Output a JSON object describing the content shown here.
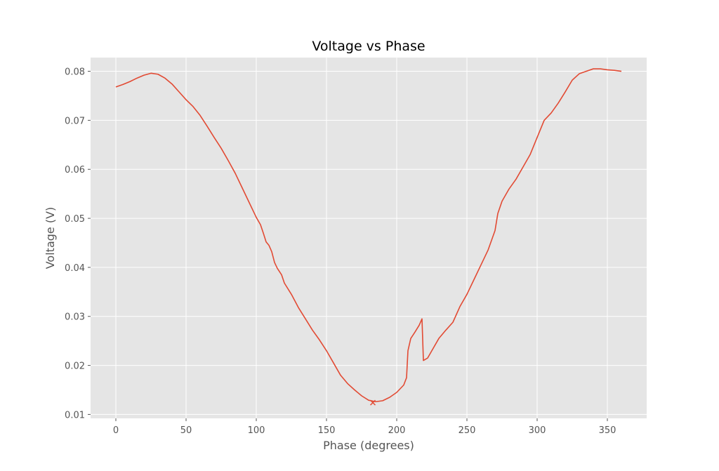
{
  "chart_data": {
    "type": "line",
    "title": "Voltage vs Phase",
    "xlabel": "Phase (degrees)",
    "ylabel": "Voltage (V)",
    "xlim": [
      -18,
      378
    ],
    "ylim": [
      0.0092,
      0.0828
    ],
    "xticks": [
      0,
      50,
      100,
      150,
      200,
      250,
      300,
      350
    ],
    "yticks": [
      0.01,
      0.02,
      0.03,
      0.04,
      0.05,
      0.06,
      0.07,
      0.08
    ],
    "xtick_labels": [
      "0",
      "50",
      "100",
      "150",
      "200",
      "250",
      "300",
      "350"
    ],
    "ytick_labels": [
      "0.01",
      "0.02",
      "0.03",
      "0.04",
      "0.05",
      "0.06",
      "0.07",
      "0.08"
    ],
    "grid": true,
    "style": "ggplot",
    "colors": {
      "line": "#E24A33",
      "background": "#E5E5E5",
      "grid": "#FFFFFF"
    },
    "series": [
      {
        "points": [
          [
            0,
            0.0768
          ],
          [
            5,
            0.0773
          ],
          [
            10,
            0.0779
          ],
          [
            15,
            0.0786
          ],
          [
            20,
            0.0792
          ],
          [
            25,
            0.0796
          ],
          [
            30,
            0.0794
          ],
          [
            35,
            0.0786
          ],
          [
            40,
            0.0774
          ],
          [
            45,
            0.0758
          ],
          [
            50,
            0.0742
          ],
          [
            55,
            0.0728
          ],
          [
            60,
            0.071
          ],
          [
            65,
            0.0688
          ],
          [
            70,
            0.0665
          ],
          [
            75,
            0.0643
          ],
          [
            80,
            0.0618
          ],
          [
            85,
            0.0592
          ],
          [
            90,
            0.0562
          ],
          [
            95,
            0.0532
          ],
          [
            100,
            0.0502
          ],
          [
            103,
            0.0487
          ],
          [
            105,
            0.047
          ],
          [
            107,
            0.0452
          ],
          [
            109,
            0.0445
          ],
          [
            111,
            0.0432
          ],
          [
            113,
            0.041
          ],
          [
            115,
            0.0398
          ],
          [
            118,
            0.0385
          ],
          [
            120,
            0.0368
          ],
          [
            125,
            0.0345
          ],
          [
            130,
            0.0318
          ],
          [
            135,
            0.0295
          ],
          [
            140,
            0.0272
          ],
          [
            145,
            0.0252
          ],
          [
            150,
            0.023
          ],
          [
            155,
            0.0205
          ],
          [
            160,
            0.018
          ],
          [
            165,
            0.0163
          ],
          [
            170,
            0.015
          ],
          [
            175,
            0.0138
          ],
          [
            180,
            0.0129
          ],
          [
            185,
            0.0126
          ],
          [
            190,
            0.0128
          ],
          [
            195,
            0.0135
          ],
          [
            200,
            0.0145
          ],
          [
            205,
            0.016
          ],
          [
            207,
            0.0175
          ],
          [
            208,
            0.023
          ],
          [
            210,
            0.0255
          ],
          [
            213,
            0.0268
          ],
          [
            216,
            0.0282
          ],
          [
            218,
            0.0295
          ],
          [
            219,
            0.021
          ],
          [
            222,
            0.0215
          ],
          [
            225,
            0.023
          ],
          [
            230,
            0.0255
          ],
          [
            235,
            0.0272
          ],
          [
            240,
            0.0288
          ],
          [
            245,
            0.032
          ],
          [
            250,
            0.0345
          ],
          [
            255,
            0.0375
          ],
          [
            260,
            0.0405
          ],
          [
            265,
            0.0435
          ],
          [
            270,
            0.0475
          ],
          [
            272,
            0.051
          ],
          [
            275,
            0.0535
          ],
          [
            280,
            0.056
          ],
          [
            285,
            0.058
          ],
          [
            290,
            0.0605
          ],
          [
            295,
            0.063
          ],
          [
            300,
            0.0665
          ],
          [
            305,
            0.07
          ],
          [
            310,
            0.0715
          ],
          [
            315,
            0.0735
          ],
          [
            320,
            0.0758
          ],
          [
            325,
            0.0782
          ],
          [
            330,
            0.0795
          ],
          [
            335,
            0.08
          ],
          [
            340,
            0.0805
          ],
          [
            345,
            0.0805
          ],
          [
            350,
            0.0803
          ],
          [
            355,
            0.0802
          ],
          [
            360,
            0.08
          ]
        ],
        "color": "#E24A33"
      }
    ],
    "marker": {
      "x": 183,
      "y": 0.0124,
      "symbol": "x",
      "color": "#E24A33"
    }
  }
}
